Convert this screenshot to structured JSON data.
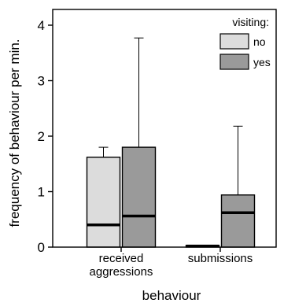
{
  "chart_data": {
    "type": "bar",
    "xlabel": "behaviour",
    "ylabel": "frequency of behaviour per min.",
    "ylim": [
      0,
      4
    ],
    "yticks": [
      0,
      1,
      2,
      3,
      4
    ],
    "categories": [
      "received\naggressions",
      "submissions"
    ],
    "legend": {
      "title": "visiting:",
      "placement": "top-right",
      "entries": [
        {
          "label": "no",
          "color": "#dcdcdc"
        },
        {
          "label": "yes",
          "color": "#9a9a9a"
        }
      ]
    },
    "series": [
      {
        "name": "no",
        "color": "#dcdcdc",
        "values": [
          1.62,
          0.03
        ],
        "medians": [
          0.4,
          0.02
        ],
        "whisker_upper": [
          1.8,
          null
        ]
      },
      {
        "name": "yes",
        "color": "#9a9a9a",
        "values": [
          1.8,
          0.94
        ],
        "medians": [
          0.56,
          0.62
        ],
        "whisker_upper": [
          3.77,
          2.18
        ]
      }
    ]
  }
}
